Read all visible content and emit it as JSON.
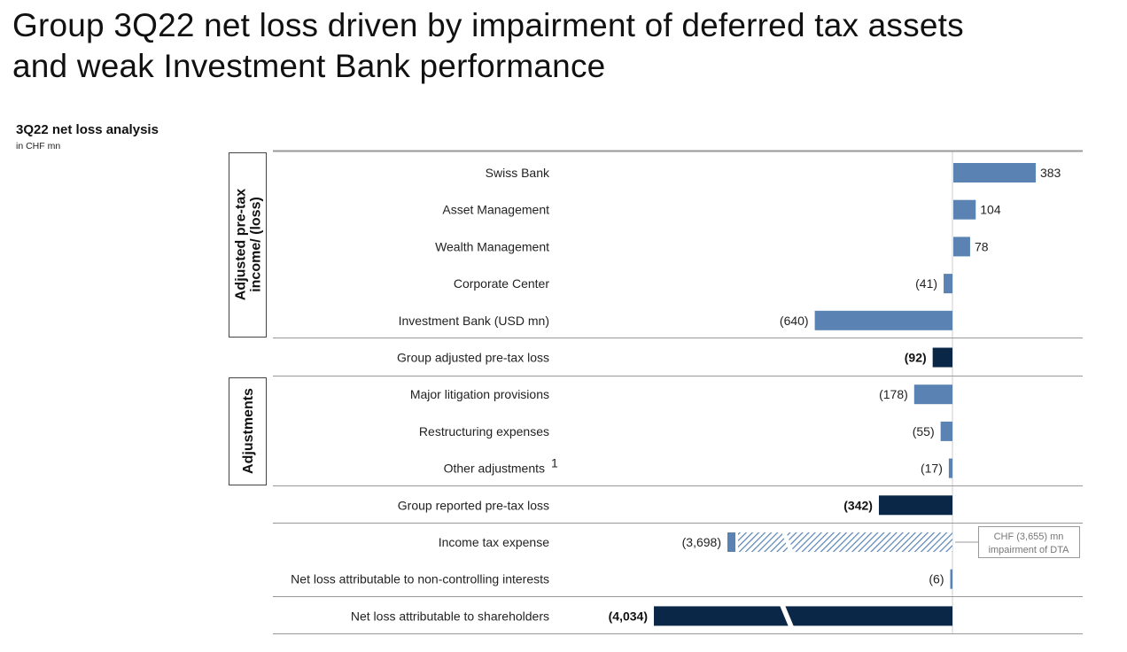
{
  "page": {
    "title_line1": "Group 3Q22 net loss driven by impairment of deferred tax assets",
    "title_line2": "and weak Investment Bank performance"
  },
  "chart_data": {
    "type": "bar",
    "title": "3Q22 net loss analysis",
    "unit": "in CHF mn",
    "groups": [
      {
        "name": "Adjusted pre-tax income/ (loss)",
        "lines": [
          "Adjusted pre-tax",
          "income/ (loss)"
        ]
      },
      {
        "name": "Adjustments",
        "lines": [
          "Adjustments"
        ]
      }
    ],
    "rows": [
      {
        "label": "Swiss Bank",
        "value": 383,
        "display": "383",
        "style": "light",
        "group": 0
      },
      {
        "label": "Asset Management",
        "value": 104,
        "display": "104",
        "style": "light",
        "group": 0
      },
      {
        "label": "Wealth Management",
        "value": 78,
        "display": "78",
        "style": "light",
        "group": 0
      },
      {
        "label": "Corporate Center",
        "value": -41,
        "display": "(41)",
        "style": "light",
        "group": 0
      },
      {
        "label": "Investment Bank (USD mn)",
        "value": -640,
        "display": "(640)",
        "style": "light",
        "group": 0
      },
      {
        "label": "Group adjusted pre-tax loss",
        "value": -92,
        "display": "(92)",
        "style": "dark",
        "bold": true
      },
      {
        "label": "Major litigation provisions",
        "value": -178,
        "display": "(178)",
        "style": "light",
        "group": 1
      },
      {
        "label": "Restructuring expenses",
        "value": -55,
        "display": "(55)",
        "style": "light",
        "group": 1
      },
      {
        "label": "Other adjustments",
        "superscript": "1",
        "value": -17,
        "display": "(17)",
        "style": "light",
        "group": 1
      },
      {
        "label": "Group reported pre-tax loss",
        "value": -342,
        "display": "(342)",
        "style": "dark",
        "bold": true
      },
      {
        "label": "Income tax expense",
        "value": -3698,
        "display": "(3,698)",
        "style": "hatched",
        "hatched_portion": -3655
      },
      {
        "label": "Net loss attributable to non-controlling interests",
        "value": -6,
        "display": "(6)",
        "style": "light"
      },
      {
        "label": "Net loss attributable to shareholders",
        "value": -4034,
        "display": "(4,034)",
        "style": "dark-broken",
        "bold": true
      }
    ],
    "annotation": {
      "line1": "CHF (3,655) mn",
      "line2": "impairment of DTA"
    },
    "colors": {
      "light": "#5a83b4",
      "dark": "#0a2747",
      "hatch": "#5a83b4",
      "rule": "#999999",
      "axis": "#cccccc"
    }
  }
}
